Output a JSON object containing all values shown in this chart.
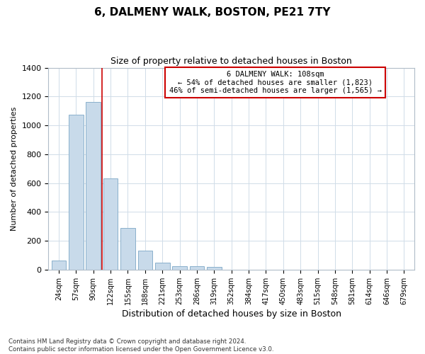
{
  "title": "6, DALMENY WALK, BOSTON, PE21 7TY",
  "subtitle": "Size of property relative to detached houses in Boston",
  "xlabel": "Distribution of detached houses by size in Boston",
  "ylabel": "Number of detached properties",
  "categories": [
    "24sqm",
    "57sqm",
    "90sqm",
    "122sqm",
    "155sqm",
    "188sqm",
    "221sqm",
    "253sqm",
    "286sqm",
    "319sqm",
    "352sqm",
    "384sqm",
    "417sqm",
    "450sqm",
    "483sqm",
    "515sqm",
    "548sqm",
    "581sqm",
    "614sqm",
    "646sqm",
    "679sqm"
  ],
  "values": [
    65,
    1075,
    1160,
    635,
    290,
    130,
    50,
    25,
    25,
    20,
    0,
    0,
    0,
    0,
    0,
    0,
    0,
    0,
    0,
    0,
    0
  ],
  "bar_color": "#c8daea",
  "bar_edge_color": "#8ab0cc",
  "grid_color": "#d0dce8",
  "background_color": "#ffffff",
  "vline_x": 2.5,
  "vline_color": "#cc0000",
  "annotation_line1": "6 DALMENY WALK: 108sqm",
  "annotation_line2": "← 54% of detached houses are smaller (1,823)",
  "annotation_line3": "46% of semi-detached houses are larger (1,565) →",
  "annotation_box_fc": "#ffffff",
  "annotation_box_ec": "#cc0000",
  "footer_text": "Contains HM Land Registry data © Crown copyright and database right 2024.\nContains public sector information licensed under the Open Government Licence v3.0.",
  "ylim": [
    0,
    1400
  ],
  "yticks": [
    0,
    200,
    400,
    600,
    800,
    1000,
    1200,
    1400
  ]
}
